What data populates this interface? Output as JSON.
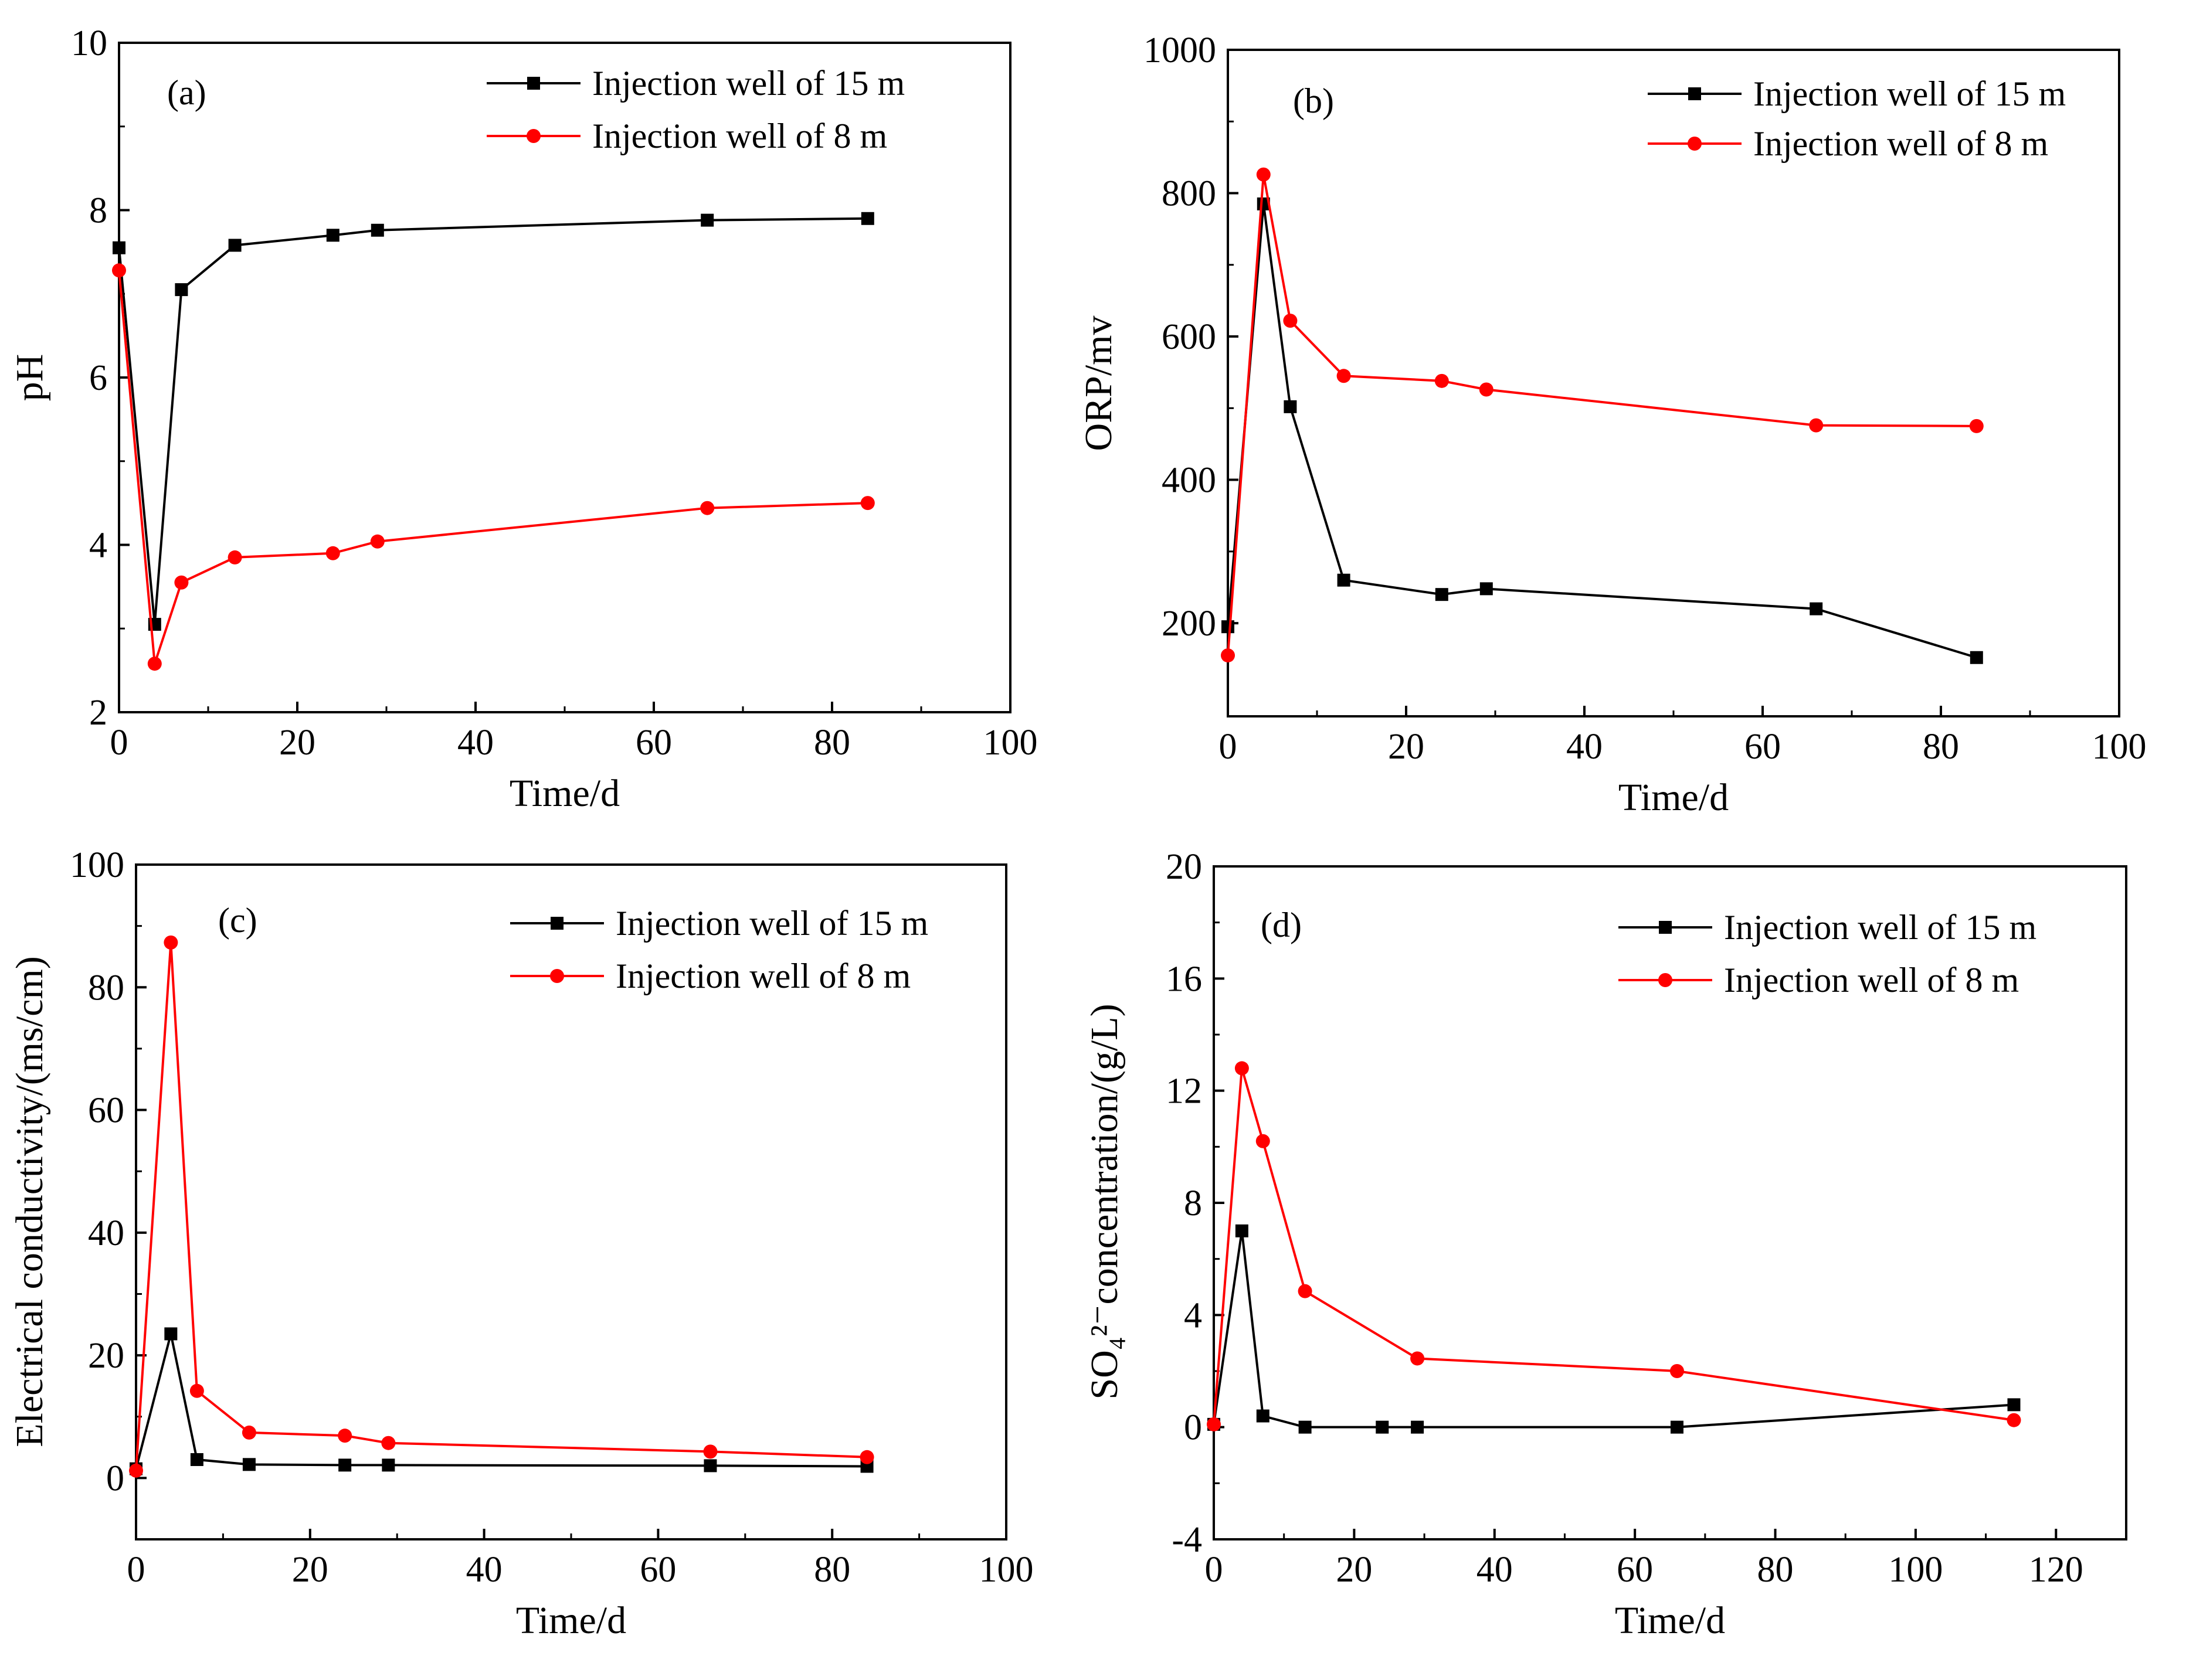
{
  "figure": {
    "background": "#ffffff"
  },
  "chart_data": [
    {
      "id": "a",
      "type": "line",
      "panel_label": "(a)",
      "xlabel": "Time/d",
      "ylabel": "pH",
      "xlim": [
        0,
        100
      ],
      "ylim": [
        2,
        10
      ],
      "xticks": [
        0,
        20,
        40,
        60,
        80,
        100
      ],
      "yticks": [
        2,
        4,
        6,
        8,
        10
      ],
      "grid": false,
      "legend_position": "top-right",
      "series": [
        {
          "name": "Injection well of 15 m",
          "color": "#000000",
          "marker": "square",
          "x": [
            0,
            4,
            7,
            13,
            24,
            29,
            66,
            84
          ],
          "y": [
            7.55,
            3.05,
            7.05,
            7.58,
            7.7,
            7.76,
            7.88,
            7.9
          ]
        },
        {
          "name": "Injection well of 8 m",
          "color": "#ff0000",
          "marker": "circle",
          "x": [
            0,
            4,
            7,
            13,
            24,
            29,
            66,
            84
          ],
          "y": [
            7.28,
            2.58,
            3.55,
            3.85,
            3.9,
            4.04,
            4.44,
            4.5
          ]
        }
      ]
    },
    {
      "id": "b",
      "type": "line",
      "panel_label": "(b)",
      "xlabel": "Time/d",
      "ylabel": "ORP/mv",
      "xlim": [
        0,
        100
      ],
      "ylim": [
        70,
        1000
      ],
      "xticks": [
        0,
        20,
        40,
        60,
        80,
        100
      ],
      "yticks": [
        200,
        400,
        600,
        800,
        1000
      ],
      "grid": false,
      "legend_position": "top-right",
      "series": [
        {
          "name": "Injection well of 15 m",
          "color": "#000000",
          "marker": "square",
          "x": [
            0,
            4,
            7,
            13,
            24,
            29,
            66,
            84
          ],
          "y": [
            195,
            785,
            502,
            260,
            240,
            248,
            220,
            152
          ]
        },
        {
          "name": "Injection well of 8 m",
          "color": "#ff0000",
          "marker": "circle",
          "x": [
            0,
            4,
            7,
            13,
            24,
            29,
            66,
            84
          ],
          "y": [
            155,
            826,
            622,
            545,
            538,
            526,
            476,
            475
          ]
        }
      ]
    },
    {
      "id": "c",
      "type": "line",
      "panel_label": "(c)",
      "xlabel": "Time/d",
      "ylabel": "Electrical conductivity/(ms/cm)",
      "xlim": [
        0,
        100
      ],
      "ylim": [
        -10,
        100
      ],
      "xticks": [
        0,
        20,
        40,
        60,
        80,
        100
      ],
      "yticks": [
        0,
        20,
        40,
        60,
        80,
        100
      ],
      "grid": false,
      "legend_position": "top-right",
      "series": [
        {
          "name": "Injection well of 15 m",
          "color": "#000000",
          "marker": "square",
          "x": [
            0,
            4,
            7,
            13,
            24,
            29,
            66,
            84
          ],
          "y": [
            1.5,
            23.5,
            3.0,
            2.2,
            2.1,
            2.1,
            2.0,
            1.9
          ]
        },
        {
          "name": "Injection well of 8 m",
          "color": "#ff0000",
          "marker": "circle",
          "x": [
            0,
            4,
            7,
            13,
            24,
            29,
            66,
            84
          ],
          "y": [
            1.2,
            87.3,
            14.2,
            7.4,
            6.9,
            5.7,
            4.3,
            3.4
          ]
        }
      ]
    },
    {
      "id": "d",
      "type": "line",
      "panel_label": "(d)",
      "xlabel": "Time/d",
      "ylabel": "SO₄²⁻concentration/(g/L)",
      "xlim": [
        0,
        130
      ],
      "ylim": [
        -4,
        20
      ],
      "xticks": [
        0,
        20,
        40,
        60,
        80,
        100,
        120
      ],
      "yticks": [
        -4,
        0,
        4,
        8,
        12,
        16,
        20
      ],
      "grid": false,
      "legend_position": "top-right",
      "series": [
        {
          "name": "Injection well of 15 m",
          "color": "#000000",
          "marker": "square",
          "x": [
            0,
            4,
            7,
            13,
            24,
            29,
            66,
            114
          ],
          "y": [
            0.1,
            7.0,
            0.4,
            0.0,
            0.0,
            0.0,
            0.0,
            0.8
          ]
        },
        {
          "name": "Injection well of 8 m",
          "color": "#ff0000",
          "marker": "circle",
          "x": [
            0,
            4,
            7,
            13,
            29,
            66,
            114
          ],
          "y": [
            0.1,
            12.8,
            10.2,
            4.85,
            2.45,
            2.0,
            0.25
          ]
        }
      ]
    }
  ]
}
